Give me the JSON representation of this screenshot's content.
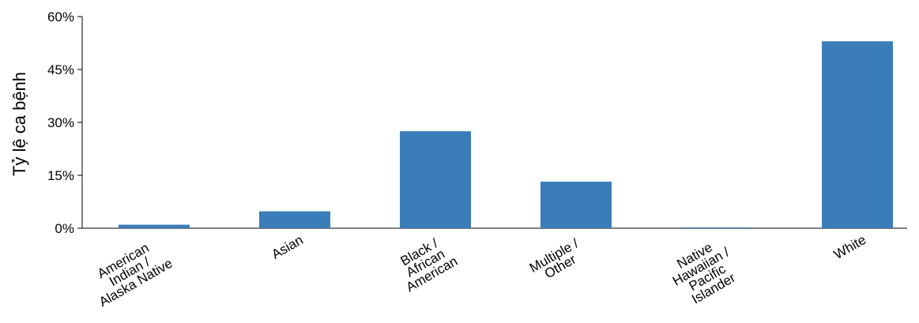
{
  "chart_data": {
    "type": "bar",
    "categories": [
      [
        "American",
        "Indian /",
        "Alaska Native"
      ],
      [
        "Asian"
      ],
      [
        "Black /",
        "African",
        "American"
      ],
      [
        "Multiple /",
        "Other"
      ],
      [
        "Native",
        "Hawaiian /",
        "Pacific",
        "Islander"
      ],
      [
        "White"
      ]
    ],
    "values": [
      1.0,
      4.8,
      27.5,
      13.2,
      0.2,
      53.0
    ],
    "title": "",
    "xlabel": "",
    "ylabel": "Tỷ lệ ca bệnh",
    "ylim": [
      0,
      60
    ],
    "yticks": [
      0,
      15,
      30,
      45,
      60
    ],
    "ytick_labels": [
      "0%",
      "15%",
      "30%",
      "45%",
      "60%"
    ],
    "grid": false,
    "bar_color": "#3a7db8"
  }
}
